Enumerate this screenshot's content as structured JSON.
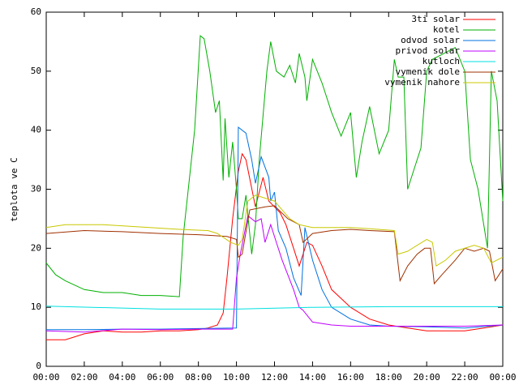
{
  "chart_data": {
    "type": "line",
    "ylabel": "teplota ve C",
    "xlim": [
      0,
      24
    ],
    "xticks": [
      {
        "value": 0,
        "label": "00:00"
      },
      {
        "value": 2,
        "label": "02:00"
      },
      {
        "value": 4,
        "label": "04:00"
      },
      {
        "value": 6,
        "label": "06:00"
      },
      {
        "value": 8,
        "label": "08:00"
      },
      {
        "value": 10,
        "label": "10:00"
      },
      {
        "value": 12,
        "label": "12:00"
      },
      {
        "value": 14,
        "label": "14:00"
      },
      {
        "value": 16,
        "label": "16:00"
      },
      {
        "value": 18,
        "label": "18:00"
      },
      {
        "value": 20,
        "label": "20:00"
      },
      {
        "value": 22,
        "label": "22:00"
      },
      {
        "value": 24,
        "label": "00:00"
      }
    ],
    "ylim": [
      0,
      60
    ],
    "yticks": [
      0,
      10,
      20,
      30,
      40,
      50,
      60
    ],
    "legend": "top-right",
    "series": [
      {
        "name": "3ti solar",
        "color": "#ff0000",
        "x": [
          0,
          1,
          1.5,
          2,
          3,
          4,
          5,
          6,
          7,
          8,
          8.5,
          9,
          9.3,
          9.5,
          9.8,
          10.1,
          10.3,
          10.5,
          11,
          11.4,
          11.7,
          12,
          12.3,
          12.6,
          13,
          13.3,
          13.7,
          14,
          14.5,
          15,
          16,
          17,
          18,
          19,
          20,
          21,
          22,
          23,
          24
        ],
        "values": [
          4.5,
          4.5,
          5,
          5.5,
          6,
          5.8,
          5.8,
          6,
          6,
          6.2,
          6.5,
          7,
          9,
          15,
          25,
          33,
          36,
          35,
          27,
          32,
          28,
          27,
          26,
          24,
          20,
          17,
          21,
          20.5,
          17,
          13,
          10,
          8,
          7,
          6.5,
          6,
          6,
          6,
          6.5,
          7
        ]
      },
      {
        "name": "kotel",
        "color": "#00b000",
        "x": [
          0,
          0.5,
          1,
          2,
          3,
          4,
          5,
          6,
          7,
          7.2,
          7.8,
          8.1,
          8.3,
          8.6,
          8.9,
          9.1,
          9.3,
          9.4,
          9.6,
          9.8,
          10,
          10.1,
          10.3,
          10.5,
          10.8,
          11,
          11.2,
          11.6,
          11.8,
          12.1,
          12.5,
          12.8,
          13.1,
          13.3,
          13.6,
          13.7,
          14,
          14.5,
          15,
          15.5,
          16,
          16.3,
          16.6,
          17,
          17.5,
          18,
          18.3,
          18.5,
          18.8,
          19,
          19.3,
          19.7,
          20,
          20.3,
          21.5,
          22,
          22.3,
          22.7,
          23.2,
          23.4,
          23.7,
          24
        ],
        "values": [
          17.5,
          15.5,
          14.5,
          13,
          12.5,
          12.5,
          12,
          12,
          11.8,
          22,
          40,
          56,
          55.5,
          50,
          43,
          45,
          31.5,
          42,
          32,
          38,
          30,
          25,
          25,
          29,
          19,
          24,
          35,
          50,
          55,
          50,
          49,
          51,
          48,
          53,
          49,
          45,
          52,
          48,
          43,
          39,
          43,
          32,
          38,
          44,
          36,
          40,
          52,
          49,
          49,
          30,
          33,
          37,
          50,
          52,
          54,
          50,
          35,
          30,
          20,
          50,
          45,
          28
        ]
      },
      {
        "name": "odvod solar",
        "color": "#0070e0",
        "x": [
          0,
          2,
          4,
          6,
          8,
          10,
          10.1,
          10.5,
          10.8,
          11,
          11.3,
          11.7,
          11.8,
          12,
          12.2,
          12.6,
          13,
          13.4,
          13.6,
          14,
          14.5,
          15,
          16,
          17,
          18,
          20,
          22,
          24
        ],
        "values": [
          6.2,
          6.2,
          6.3,
          6.3,
          6.4,
          6.5,
          40.5,
          39.5,
          35,
          31,
          35.5,
          32,
          28,
          29.5,
          23,
          20,
          15,
          12,
          23.5,
          18,
          13,
          10,
          8,
          7,
          6.8,
          6.7,
          6.5,
          7
        ]
      },
      {
        "name": "privod solar",
        "color": "#c000ff",
        "x": [
          0,
          2,
          4,
          6,
          8,
          9.8,
          10,
          10.2,
          10.6,
          11,
          11.3,
          11.5,
          11.8,
          12.1,
          12.4,
          13,
          13.3,
          13.5,
          14,
          15,
          16,
          18,
          20,
          22,
          24
        ],
        "values": [
          6,
          5.8,
          6.3,
          6.2,
          6.3,
          6.3,
          15,
          19,
          25.5,
          24.5,
          25,
          21,
          24,
          21,
          18,
          13,
          10,
          9.5,
          7.5,
          7,
          6.8,
          6.8,
          6.8,
          6.8,
          7
        ]
      },
      {
        "name": "kutloch",
        "color": "#00e0e0",
        "x": [
          0,
          6,
          10,
          14,
          18,
          24
        ],
        "values": [
          10.2,
          9.7,
          9.7,
          10,
          10.1,
          10.1
        ]
      },
      {
        "name": "vymenik dole",
        "color": "#a03000",
        "x": [
          0,
          2,
          4,
          6,
          8,
          9.5,
          10,
          10.1,
          10.3,
          10.7,
          11.5,
          12,
          12.7,
          13.3,
          13.5,
          14,
          15,
          16,
          17,
          18.3,
          18.6,
          19,
          19.5,
          19.9,
          20.2,
          20.4,
          20.8,
          21.5,
          22,
          22.5,
          23,
          23.3,
          23.6,
          24
        ],
        "values": [
          22.5,
          23,
          22.8,
          22.5,
          22.3,
          22,
          21.5,
          18.5,
          19,
          26.5,
          27,
          27.2,
          25,
          24,
          21,
          22.5,
          23,
          23.2,
          23,
          22.8,
          14.5,
          17,
          19,
          20,
          20,
          14,
          15.5,
          18,
          20,
          19.5,
          20,
          19.5,
          14.5,
          16.5
        ]
      },
      {
        "name": "vymenik nahore",
        "color": "#c8c800",
        "x": [
          0,
          1,
          3,
          5,
          7,
          8.5,
          9,
          9.7,
          10.1,
          10.3,
          10.6,
          11,
          12,
          12.8,
          13.3,
          14,
          16,
          17,
          18.3,
          18.5,
          19,
          19.5,
          20,
          20.3,
          20.5,
          21,
          21.5,
          22.5,
          23,
          23.4,
          24
        ],
        "values": [
          23.5,
          24,
          24,
          23.6,
          23.2,
          23,
          22.5,
          21,
          20.5,
          21.5,
          28,
          29,
          28,
          25,
          24,
          23.5,
          23.5,
          23.3,
          23,
          19,
          19.5,
          20.5,
          21.5,
          21,
          17,
          18,
          19.5,
          20.5,
          20,
          17.5,
          18.5
        ]
      }
    ]
  }
}
